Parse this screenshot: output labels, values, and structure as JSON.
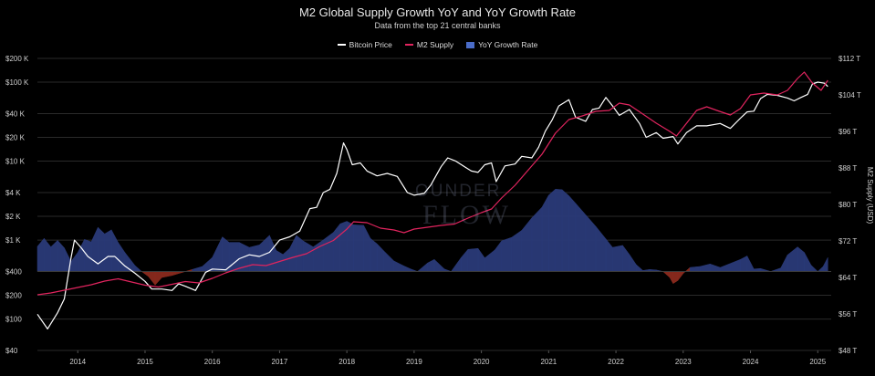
{
  "title": "M2 Global Supply Growth YoY and YoY Growth Rate",
  "subtitle": "Data from the top 21 central banks",
  "legend": {
    "bitcoin": "Bitcoin Price",
    "m2": "M2 Supply",
    "yoy": "YoY Growth Rate"
  },
  "watermark": {
    "word1": "OUNDER",
    "word2": "FLOW"
  },
  "colors": {
    "bitcoin": "#ffffff",
    "m2": "#e0245e",
    "yoy_positive": "#2a3a78",
    "yoy_negative": "#8a2a1e",
    "grid": "#2a2a2a"
  },
  "chart_data": {
    "type": "line",
    "title": "M2 Global Supply Growth YoY and YoY Growth Rate",
    "subtitle": "Data from the top 21 central banks",
    "x_ticks": [
      "2014",
      "2015",
      "2016",
      "2017",
      "2018",
      "2019",
      "2020",
      "2021",
      "2022",
      "2023",
      "2024",
      "2025"
    ],
    "x_range": [
      2013.4,
      2025.2
    ],
    "y_left": {
      "scale": "log",
      "ticks": [
        40,
        100,
        200,
        400,
        1000,
        2000,
        4000,
        10000,
        20000,
        40000,
        100000,
        200000
      ],
      "tick_labels": [
        "$40",
        "$100",
        "$200",
        "$400",
        "$1 K",
        "$2 K",
        "$4 K",
        "$10 K",
        "$20 K",
        "$40 K",
        "$100 K",
        "$200 K"
      ],
      "range": [
        40,
        200000
      ]
    },
    "y_right": {
      "label": "M2 Supply (USD)",
      "ticks": [
        48,
        56,
        64,
        72,
        80,
        88,
        96,
        104,
        112
      ],
      "tick_labels": [
        "$48 T",
        "$56 T",
        "$64 T",
        "$72 T",
        "$80 T",
        "$88 T",
        "$96 T",
        "$104 T",
        "$112 T"
      ],
      "range": [
        48,
        112
      ]
    },
    "grid": true,
    "legend_position": "top-center",
    "series": [
      {
        "name": "Bitcoin Price",
        "axis": "left",
        "points": [
          [
            2013.4,
            115
          ],
          [
            2013.55,
            75
          ],
          [
            2013.7,
            120
          ],
          [
            2013.8,
            180
          ],
          [
            2013.9,
            600
          ],
          [
            2013.95,
            1000
          ],
          [
            2014.05,
            800
          ],
          [
            2014.15,
            620
          ],
          [
            2014.3,
            500
          ],
          [
            2014.45,
            620
          ],
          [
            2014.55,
            620
          ],
          [
            2014.7,
            470
          ],
          [
            2014.85,
            380
          ],
          [
            2015.0,
            300
          ],
          [
            2015.1,
            240
          ],
          [
            2015.25,
            240
          ],
          [
            2015.4,
            230
          ],
          [
            2015.5,
            280
          ],
          [
            2015.6,
            260
          ],
          [
            2015.75,
            230
          ],
          [
            2015.9,
            390
          ],
          [
            2016.0,
            430
          ],
          [
            2016.2,
            420
          ],
          [
            2016.4,
            580
          ],
          [
            2016.55,
            650
          ],
          [
            2016.7,
            620
          ],
          [
            2016.85,
            700
          ],
          [
            2017.0,
            1000
          ],
          [
            2017.15,
            1100
          ],
          [
            2017.3,
            1300
          ],
          [
            2017.45,
            2500
          ],
          [
            2017.55,
            2600
          ],
          [
            2017.65,
            4000
          ],
          [
            2017.75,
            4400
          ],
          [
            2017.85,
            7000
          ],
          [
            2017.95,
            17000
          ],
          [
            2018.0,
            14000
          ],
          [
            2018.08,
            9000
          ],
          [
            2018.2,
            9500
          ],
          [
            2018.3,
            7500
          ],
          [
            2018.45,
            6500
          ],
          [
            2018.6,
            7000
          ],
          [
            2018.75,
            6400
          ],
          [
            2018.9,
            4000
          ],
          [
            2019.0,
            3700
          ],
          [
            2019.15,
            3900
          ],
          [
            2019.25,
            5000
          ],
          [
            2019.4,
            8500
          ],
          [
            2019.5,
            11000
          ],
          [
            2019.62,
            10000
          ],
          [
            2019.75,
            8500
          ],
          [
            2019.85,
            7500
          ],
          [
            2019.95,
            7200
          ],
          [
            2020.05,
            9000
          ],
          [
            2020.15,
            9500
          ],
          [
            2020.22,
            5500
          ],
          [
            2020.35,
            8700
          ],
          [
            2020.5,
            9200
          ],
          [
            2020.6,
            11500
          ],
          [
            2020.75,
            11000
          ],
          [
            2020.85,
            15000
          ],
          [
            2020.95,
            24000
          ],
          [
            2021.05,
            33000
          ],
          [
            2021.15,
            50000
          ],
          [
            2021.3,
            60000
          ],
          [
            2021.4,
            36000
          ],
          [
            2021.55,
            32000
          ],
          [
            2021.65,
            45000
          ],
          [
            2021.75,
            47000
          ],
          [
            2021.85,
            64000
          ],
          [
            2021.95,
            50000
          ],
          [
            2022.05,
            38000
          ],
          [
            2022.2,
            45000
          ],
          [
            2022.35,
            30000
          ],
          [
            2022.45,
            20000
          ],
          [
            2022.6,
            23000
          ],
          [
            2022.7,
            19500
          ],
          [
            2022.85,
            20500
          ],
          [
            2022.92,
            16500
          ],
          [
            2023.05,
            23000
          ],
          [
            2023.2,
            28000
          ],
          [
            2023.35,
            28000
          ],
          [
            2023.55,
            30000
          ],
          [
            2023.7,
            26000
          ],
          [
            2023.85,
            35000
          ],
          [
            2023.95,
            42000
          ],
          [
            2024.05,
            43000
          ],
          [
            2024.15,
            62000
          ],
          [
            2024.25,
            70000
          ],
          [
            2024.4,
            68000
          ],
          [
            2024.55,
            63000
          ],
          [
            2024.65,
            58000
          ],
          [
            2024.75,
            64000
          ],
          [
            2024.85,
            70000
          ],
          [
            2024.92,
            95000
          ],
          [
            2025.0,
            100000
          ],
          [
            2025.1,
            97000
          ],
          [
            2025.15,
            88000
          ]
        ]
      },
      {
        "name": "M2 Supply",
        "axis": "right",
        "points": [
          [
            2013.4,
            60.2
          ],
          [
            2013.6,
            60.6
          ],
          [
            2013.8,
            61.2
          ],
          [
            2014.0,
            61.8
          ],
          [
            2014.2,
            62.4
          ],
          [
            2014.4,
            63.2
          ],
          [
            2014.6,
            63.7
          ],
          [
            2014.8,
            63.0
          ],
          [
            2015.0,
            62.3
          ],
          [
            2015.2,
            61.9
          ],
          [
            2015.4,
            62.5
          ],
          [
            2015.6,
            63.1
          ],
          [
            2015.8,
            62.8
          ],
          [
            2016.0,
            63.8
          ],
          [
            2016.2,
            65.0
          ],
          [
            2016.4,
            66.0
          ],
          [
            2016.6,
            66.8
          ],
          [
            2016.8,
            66.6
          ],
          [
            2017.0,
            67.5
          ],
          [
            2017.2,
            68.4
          ],
          [
            2017.4,
            69.2
          ],
          [
            2017.6,
            70.8
          ],
          [
            2017.8,
            72.1
          ],
          [
            2018.0,
            74.6
          ],
          [
            2018.1,
            76.2
          ],
          [
            2018.3,
            76.0
          ],
          [
            2018.5,
            74.8
          ],
          [
            2018.7,
            74.4
          ],
          [
            2018.85,
            73.8
          ],
          [
            2019.0,
            74.6
          ],
          [
            2019.2,
            75.0
          ],
          [
            2019.4,
            75.4
          ],
          [
            2019.6,
            75.7
          ],
          [
            2019.8,
            77.0
          ],
          [
            2020.0,
            78.2
          ],
          [
            2020.15,
            79.0
          ],
          [
            2020.3,
            81.4
          ],
          [
            2020.5,
            84.2
          ],
          [
            2020.7,
            87.6
          ],
          [
            2020.9,
            91.0
          ],
          [
            2021.1,
            95.6
          ],
          [
            2021.3,
            98.6
          ],
          [
            2021.5,
            99.4
          ],
          [
            2021.7,
            100.4
          ],
          [
            2021.9,
            100.6
          ],
          [
            2022.05,
            102.2
          ],
          [
            2022.2,
            101.8
          ],
          [
            2022.4,
            99.8
          ],
          [
            2022.6,
            97.8
          ],
          [
            2022.8,
            96.0
          ],
          [
            2022.9,
            95.0
          ],
          [
            2023.05,
            97.8
          ],
          [
            2023.2,
            100.6
          ],
          [
            2023.35,
            101.4
          ],
          [
            2023.5,
            100.6
          ],
          [
            2023.7,
            99.6
          ],
          [
            2023.85,
            101.0
          ],
          [
            2024.0,
            104.0
          ],
          [
            2024.2,
            104.4
          ],
          [
            2024.4,
            104.0
          ],
          [
            2024.55,
            105.0
          ],
          [
            2024.7,
            107.6
          ],
          [
            2024.8,
            109.0
          ],
          [
            2024.92,
            106.6
          ],
          [
            2025.05,
            105.0
          ],
          [
            2025.15,
            107.2
          ]
        ]
      }
    ],
    "yoy_growth_area": {
      "name": "YoY Growth Rate",
      "baseline_note": "drawn around the $400 / $64 T line; above = positive, below = negative",
      "points": [
        [
          2013.4,
          0.5
        ],
        [
          2013.5,
          0.66
        ],
        [
          2013.6,
          0.49
        ],
        [
          2013.7,
          0.62
        ],
        [
          2013.8,
          0.47
        ],
        [
          2013.9,
          0.2
        ],
        [
          2014.0,
          0.38
        ],
        [
          2014.1,
          0.64
        ],
        [
          2014.2,
          0.59
        ],
        [
          2014.3,
          0.88
        ],
        [
          2014.4,
          0.75
        ],
        [
          2014.5,
          0.83
        ],
        [
          2014.6,
          0.58
        ],
        [
          2014.7,
          0.38
        ],
        [
          2014.85,
          0.12
        ],
        [
          2014.95,
          0.0
        ],
        [
          2015.05,
          -0.1
        ],
        [
          2015.15,
          -0.27
        ],
        [
          2015.25,
          -0.12
        ],
        [
          2015.4,
          -0.08
        ],
        [
          2015.55,
          -0.02
        ],
        [
          2015.7,
          0.04
        ],
        [
          2015.85,
          0.1
        ],
        [
          2016.0,
          0.28
        ],
        [
          2016.15,
          0.69
        ],
        [
          2016.25,
          0.58
        ],
        [
          2016.4,
          0.58
        ],
        [
          2016.55,
          0.48
        ],
        [
          2016.7,
          0.53
        ],
        [
          2016.85,
          0.72
        ],
        [
          2016.95,
          0.42
        ],
        [
          2017.05,
          0.34
        ],
        [
          2017.15,
          0.46
        ],
        [
          2017.25,
          0.72
        ],
        [
          2017.35,
          0.61
        ],
        [
          2017.5,
          0.49
        ],
        [
          2017.65,
          0.63
        ],
        [
          2017.8,
          0.78
        ],
        [
          2017.9,
          0.95
        ],
        [
          2018.0,
          1.0
        ],
        [
          2018.1,
          0.93
        ],
        [
          2018.25,
          0.92
        ],
        [
          2018.35,
          0.66
        ],
        [
          2018.45,
          0.55
        ],
        [
          2018.55,
          0.41
        ],
        [
          2018.7,
          0.21
        ],
        [
          2018.85,
          0.11
        ],
        [
          2018.95,
          0.05
        ],
        [
          2019.05,
          0.0
        ],
        [
          2019.2,
          0.17
        ],
        [
          2019.3,
          0.24
        ],
        [
          2019.45,
          0.05
        ],
        [
          2019.55,
          0.0
        ],
        [
          2019.7,
          0.28
        ],
        [
          2019.8,
          0.44
        ],
        [
          2019.95,
          0.46
        ],
        [
          2020.05,
          0.27
        ],
        [
          2020.2,
          0.43
        ],
        [
          2020.3,
          0.61
        ],
        [
          2020.45,
          0.68
        ],
        [
          2020.6,
          0.82
        ],
        [
          2020.75,
          1.07
        ],
        [
          2020.9,
          1.28
        ],
        [
          2021.0,
          1.52
        ],
        [
          2021.1,
          1.64
        ],
        [
          2021.2,
          1.63
        ],
        [
          2021.3,
          1.51
        ],
        [
          2021.4,
          1.36
        ],
        [
          2021.55,
          1.13
        ],
        [
          2021.7,
          0.9
        ],
        [
          2021.85,
          0.65
        ],
        [
          2021.95,
          0.48
        ],
        [
          2022.1,
          0.52
        ],
        [
          2022.2,
          0.34
        ],
        [
          2022.3,
          0.14
        ],
        [
          2022.4,
          0.02
        ],
        [
          2022.5,
          0.04
        ],
        [
          2022.6,
          0.03
        ],
        [
          2022.7,
          0.0
        ],
        [
          2022.8,
          -0.12
        ],
        [
          2022.85,
          -0.24
        ],
        [
          2022.92,
          -0.18
        ],
        [
          2023.0,
          -0.04
        ],
        [
          2023.1,
          0.08
        ],
        [
          2023.25,
          0.1
        ],
        [
          2023.4,
          0.15
        ],
        [
          2023.55,
          0.08
        ],
        [
          2023.7,
          0.16
        ],
        [
          2023.85,
          0.24
        ],
        [
          2023.95,
          0.31
        ],
        [
          2024.05,
          0.05
        ],
        [
          2024.15,
          0.06
        ],
        [
          2024.3,
          0.0
        ],
        [
          2024.45,
          0.07
        ],
        [
          2024.55,
          0.33
        ],
        [
          2024.7,
          0.49
        ],
        [
          2024.8,
          0.38
        ],
        [
          2024.9,
          0.13
        ],
        [
          2025.0,
          0.0
        ],
        [
          2025.08,
          0.1
        ],
        [
          2025.15,
          0.28
        ]
      ]
    }
  }
}
